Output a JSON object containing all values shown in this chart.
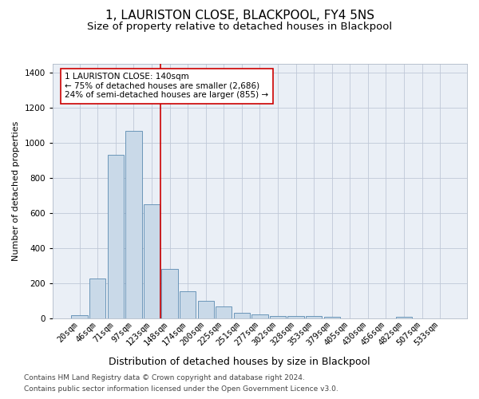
{
  "title": "1, LAURISTON CLOSE, BLACKPOOL, FY4 5NS",
  "subtitle": "Size of property relative to detached houses in Blackpool",
  "xlabel": "Distribution of detached houses by size in Blackpool",
  "ylabel": "Number of detached properties",
  "bar_color": "#c9d9e8",
  "bar_edge_color": "#5a8ab0",
  "categories": [
    "20sqm",
    "46sqm",
    "71sqm",
    "97sqm",
    "123sqm",
    "148sqm",
    "174sqm",
    "200sqm",
    "225sqm",
    "251sqm",
    "277sqm",
    "302sqm",
    "328sqm",
    "353sqm",
    "379sqm",
    "405sqm",
    "430sqm",
    "456sqm",
    "482sqm",
    "507sqm",
    "533sqm"
  ],
  "values": [
    15,
    225,
    930,
    1070,
    650,
    280,
    155,
    100,
    65,
    32,
    20,
    12,
    12,
    10,
    8,
    0,
    0,
    0,
    8,
    0,
    0
  ],
  "ylim": [
    0,
    1450
  ],
  "yticks": [
    0,
    200,
    400,
    600,
    800,
    1000,
    1200,
    1400
  ],
  "vline_x": 4.5,
  "vline_color": "#cc0000",
  "annotation_text": "1 LAURISTON CLOSE: 140sqm\n← 75% of detached houses are smaller (2,686)\n24% of semi-detached houses are larger (855) →",
  "annotation_box_color": "#ffffff",
  "annotation_box_edge": "#cc0000",
  "footer_line1": "Contains HM Land Registry data © Crown copyright and database right 2024.",
  "footer_line2": "Contains public sector information licensed under the Open Government Licence v3.0.",
  "plot_bg_color": "#eaeff6",
  "title_fontsize": 11,
  "subtitle_fontsize": 9.5,
  "xlabel_fontsize": 9,
  "ylabel_fontsize": 8,
  "tick_fontsize": 7.5,
  "footer_fontsize": 6.5,
  "annotation_fontsize": 7.5
}
